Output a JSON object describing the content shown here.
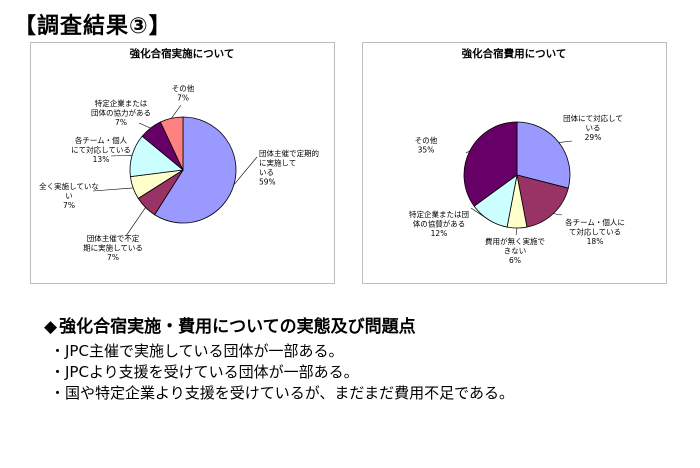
{
  "page": {
    "title": "【調査結果③】"
  },
  "chart_data": [
    {
      "type": "pie",
      "title": "強化合宿実施について",
      "slices": [
        {
          "label": "団体主催で定期的に実施している",
          "value": 59,
          "value_label": "59%",
          "color": "#9999ff"
        },
        {
          "label": "団体主催で不定期に実施している",
          "value": 7,
          "value_label": "7%",
          "color": "#993366"
        },
        {
          "label": "全く実施していない",
          "value": 7,
          "value_label": "7%",
          "color": "#ffffcc"
        },
        {
          "label": "各チーム・個人にて対応している",
          "value": 13,
          "value_label": "13%",
          "color": "#ccffff"
        },
        {
          "label": "特定企業または団体の協力がある",
          "value": 7,
          "value_label": "7%",
          "color": "#660066"
        },
        {
          "label": "その他",
          "value": 7,
          "value_label": "7%",
          "color": "#ff8080"
        }
      ]
    },
    {
      "type": "pie",
      "title": "強化合宿費用について",
      "slices": [
        {
          "label": "団体にて対応している",
          "value": 29,
          "value_label": "29%",
          "color": "#9999ff"
        },
        {
          "label": "各チーム・個人にて対応している",
          "value": 18,
          "value_label": "18%",
          "color": "#993366"
        },
        {
          "label": "費用が無く実施できない",
          "value": 6,
          "value_label": "6%",
          "color": "#ffffcc"
        },
        {
          "label": "特定企業または団体の協賛がある",
          "value": 12,
          "value_label": "12%",
          "color": "#ccffff"
        },
        {
          "label": "その他",
          "value": 35,
          "value_label": "35%",
          "color": "#660066"
        }
      ]
    }
  ],
  "summary": {
    "marker": "◆",
    "heading": "強化合宿実施・費用についての実態及び問題点",
    "items": [
      "・JPC主催で実施している団体が一部ある。",
      "・JPCより支援を受けている団体が一部ある。",
      "・国や特定企業より支援を受けているが、まだまだ費用不足である。"
    ]
  }
}
